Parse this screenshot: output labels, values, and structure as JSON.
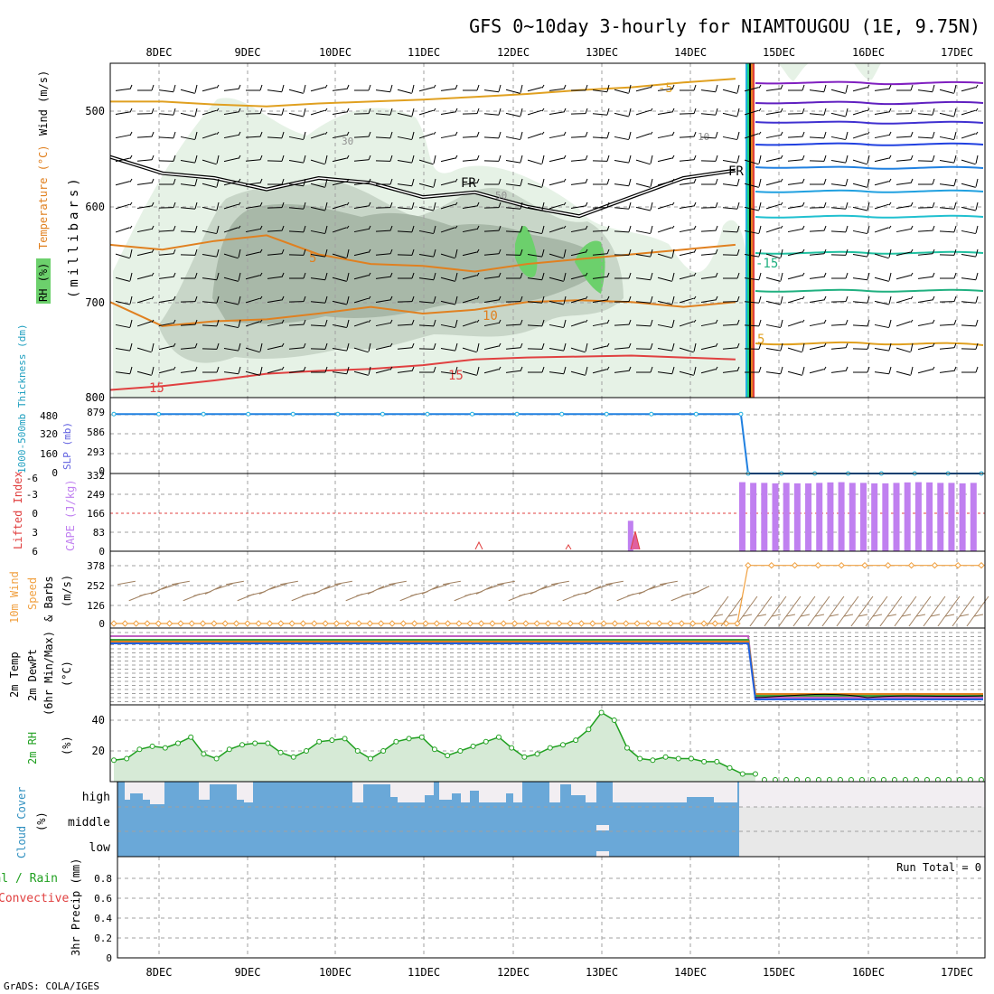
{
  "title": "GFS 0~10day 3-hourly for NIAMTOUGOU (1E, 9.75N)",
  "credit": "GrADS: COLA/IGES",
  "x_axis": {
    "date_labels": [
      "8DEC",
      "9DEC",
      "10DEC",
      "11DEC",
      "12DEC",
      "13DEC",
      "14DEC",
      "15DEC",
      "16DEC",
      "17DEC"
    ]
  },
  "colors": {
    "grid": "#a0a0a0",
    "rh_light": "#e6f2e6",
    "rh_mid": "#c8d6c8",
    "rh_dark": "#a8b8a8",
    "rh_bright": "#6cd06c",
    "freezing_level": "#000000",
    "temp_warm": "#e08020",
    "temp_hot": "#e04040",
    "temp_cold": "#e0a020",
    "slp": "#2080e0",
    "cape": "#c080f0",
    "lifted_index": "#e04040",
    "wind_speed": "#f0a040",
    "wind_barbs": "#a08060",
    "rh2m_line": "#20a020",
    "rh2m_fill": "#d6ead6",
    "cloud_blue": "#6aa8d8",
    "cloud_missing": "#e8e8e8"
  },
  "panels": {
    "upper_air": {
      "ylabel_rh": "RH (%)",
      "ylabel_temp": "Temperature (°C)",
      "ylabel_wind": "Wind (m/s)",
      "ylabel_units": "(millibars)",
      "y_ticks": [
        "500",
        "600",
        "700",
        "800"
      ],
      "contour_labels": [
        "-5",
        "30",
        "10",
        "FR",
        "FR",
        "50",
        "5",
        "-15",
        "10",
        "5",
        "15",
        "15"
      ]
    },
    "thickness_slp": {
      "ylabel_thk": "1000-500mb Thickness (dm)",
      "ylabel_slp": "SLP (mb)",
      "left_ticks": [
        "480",
        "320",
        "160",
        "0"
      ],
      "right_ticks": [
        "879",
        "586",
        "293",
        "0"
      ]
    },
    "cape_li": {
      "ylabel_li": "Lifted Index",
      "ylabel_cape": "CAPE (J/kg)",
      "left_ticks": [
        "-6",
        "-3",
        "0",
        "3",
        "6"
      ],
      "right_ticks": [
        "332",
        "249",
        "166",
        "83",
        "0"
      ]
    },
    "wind10m": {
      "ylabel_1": "10m Wind",
      "ylabel_2": "Speed",
      "ylabel_3": "& Barbs",
      "ylabel_units": "(m/s)",
      "y_ticks": [
        "378",
        "252",
        "126",
        "0"
      ]
    },
    "temp2m": {
      "ylabel_1": "2m Temp",
      "ylabel_2": "2m DewPt",
      "ylabel_3": "(6hr Min/Max)",
      "ylabel_units": "(°C)"
    },
    "rh2m": {
      "ylabel": "2m RH",
      "ylabel_units": "(%)",
      "y_ticks": [
        "40",
        "20"
      ]
    },
    "cloud": {
      "ylabel": "Cloud Cover",
      "ylabel_units": "(%)",
      "levels": [
        "high",
        "middle",
        "low"
      ]
    },
    "precip": {
      "ylabel_1": "Total / Rain",
      "ylabel_2": "Convective",
      "ylabel_3": "3hr Precip (mm)",
      "run_total": "Run Total = 0",
      "y_ticks": [
        "0.8",
        "0.6",
        "0.4",
        "0.2",
        "0"
      ]
    }
  },
  "chart_data": {
    "type": "line",
    "x_start_day": 7.55,
    "x_end_day": 17.3,
    "data_cutoff_day": 14.6,
    "temp_contours": [
      {
        "label": "-5",
        "values": [
          490,
          490,
          493,
          495,
          492,
          490,
          488,
          485,
          482,
          478,
          475,
          470,
          466
        ]
      },
      {
        "label": "FR",
        "values": [
          548,
          565,
          570,
          582,
          570,
          575,
          590,
          585,
          600,
          610,
          590,
          570,
          562
        ]
      },
      {
        "label": "5",
        "values": [
          640,
          645,
          636,
          630,
          650,
          660,
          662,
          668,
          660,
          655,
          650,
          645,
          640
        ]
      },
      {
        "label": "10",
        "values": [
          700,
          725,
          720,
          718,
          712,
          705,
          712,
          708,
          700,
          698,
          700,
          705,
          700
        ]
      },
      {
        "label": "15",
        "values": [
          792,
          788,
          782,
          775,
          772,
          770,
          766,
          760,
          758,
          757,
          756,
          758,
          760
        ]
      }
    ],
    "slp_mb": [
      850,
      850,
      850,
      850,
      850,
      850,
      850,
      850,
      850,
      850,
      850,
      850,
      850,
      850,
      850,
      0,
      0,
      0,
      0,
      0,
      0,
      0,
      0
    ],
    "cape_jkg": [
      295,
      292,
      292,
      290,
      292,
      290,
      290,
      292,
      294,
      295,
      292,
      292,
      290,
      290,
      292,
      294,
      295,
      294,
      292,
      292,
      290,
      292
    ],
    "cape_spike": {
      "day": 13.35,
      "value": 130
    },
    "rh2m_pct": [
      14,
      15,
      21,
      23,
      22,
      25,
      29,
      18,
      15,
      21,
      24,
      25,
      25,
      19,
      16,
      20,
      26,
      27,
      28,
      20,
      15,
      20,
      26,
      28,
      29,
      21,
      17,
      20,
      23,
      26,
      29,
      22,
      16,
      18,
      22,
      24,
      27,
      34,
      45,
      40,
      22,
      15,
      14,
      16,
      15,
      15,
      13,
      13,
      9,
      5,
      5
    ],
    "wind_speed_ms": [
      0,
      0,
      0,
      0,
      0,
      0,
      0,
      0,
      0,
      0,
      0,
      0,
      0,
      0,
      0,
      0,
      0,
      0,
      0,
      0,
      0,
      0,
      0,
      0,
      0,
      0,
      0,
      0,
      0,
      0,
      0,
      0,
      0,
      0,
      0,
      0,
      0,
      0,
      0,
      0,
      0,
      0,
      0,
      0,
      0,
      0,
      0,
      0,
      0,
      0,
      0,
      0,
      0,
      0,
      0,
      0,
      0,
      380,
      380,
      380,
      380,
      380,
      380,
      380,
      380,
      380,
      380,
      380
    ]
  }
}
